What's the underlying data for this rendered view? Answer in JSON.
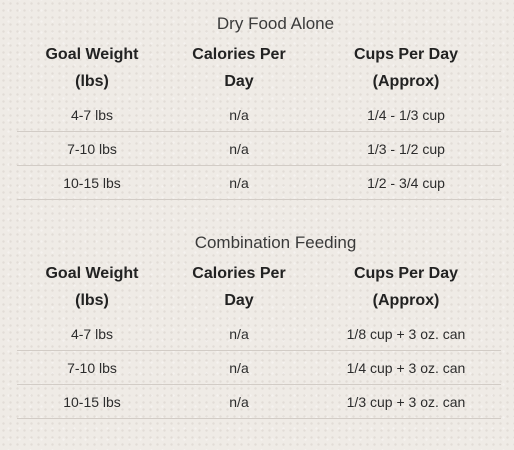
{
  "dry_food": {
    "title": "Dry Food Alone",
    "headers": {
      "goal_weight": {
        "line1": "Goal Weight",
        "line2": "(lbs)"
      },
      "calories": {
        "line1": "Calories Per",
        "line2": "Day"
      },
      "cups": {
        "line1": "Cups Per Day",
        "line2": "(Approx)"
      }
    },
    "rows": [
      {
        "weight": "4-7 lbs",
        "calories": "n/a",
        "cups": "1/4 - 1/3 cup"
      },
      {
        "weight": "7-10 lbs",
        "calories": "n/a",
        "cups": "1/3 - 1/2 cup"
      },
      {
        "weight": "10-15 lbs",
        "calories": "n/a",
        "cups": "1/2 - 3/4 cup"
      }
    ]
  },
  "combination": {
    "title": "Combination Feeding",
    "headers": {
      "goal_weight": {
        "line1": "Goal Weight",
        "line2": "(lbs)"
      },
      "calories": {
        "line1": "Calories Per",
        "line2": "Day"
      },
      "cups": {
        "line1": "Cups Per Day",
        "line2": "(Approx)"
      }
    },
    "rows": [
      {
        "weight": "4-7 lbs",
        "calories": "n/a",
        "cups": "1/8 cup + 3 oz. can"
      },
      {
        "weight": "7-10 lbs",
        "calories": "n/a",
        "cups": "1/4 cup + 3 oz. can"
      },
      {
        "weight": "10-15 lbs",
        "calories": "n/a",
        "cups": "1/3 cup + 3 oz. can"
      }
    ]
  }
}
